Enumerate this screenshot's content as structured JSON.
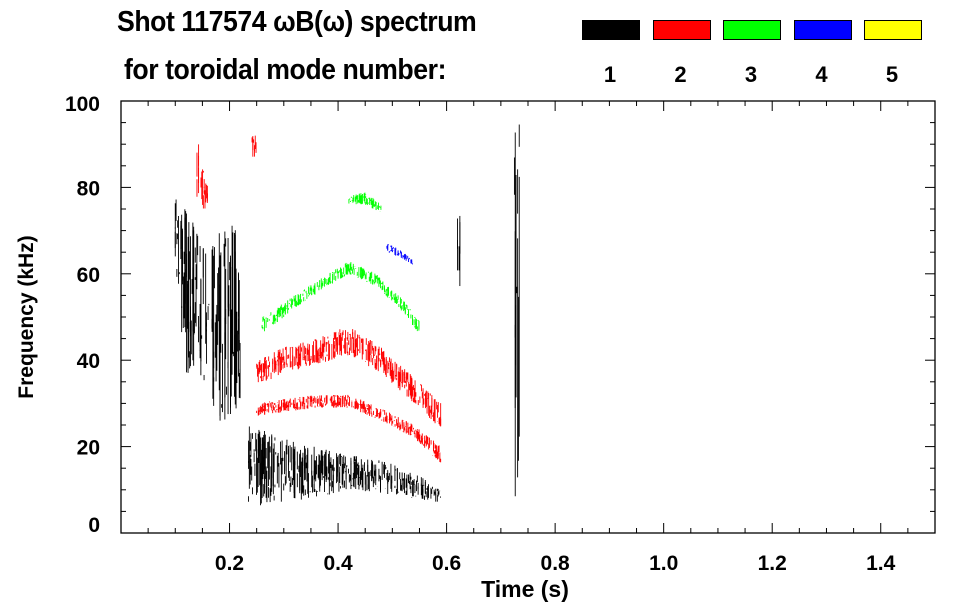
{
  "title_line1": "Shot 117574 ωB(ω) spectrum",
  "title_line2": "for toroidal mode number:",
  "legend": [
    {
      "mode": "1",
      "color": "#000000"
    },
    {
      "mode": "2",
      "color": "#ff0000"
    },
    {
      "mode": "3",
      "color": "#00ff00"
    },
    {
      "mode": "4",
      "color": "#0000ff"
    },
    {
      "mode": "5",
      "color": "#ffff00"
    }
  ],
  "chart_data": {
    "type": "heatmap",
    "title": "Shot 117574 ωB(ω) spectrum for toroidal mode number",
    "xlabel": "Time (s)",
    "ylabel": "Frequency (kHz)",
    "xlim": [
      0,
      1.5
    ],
    "ylim": [
      0,
      100
    ],
    "xticks": [
      "0.2",
      "0.4",
      "0.6",
      "0.8",
      "1.0",
      "1.2",
      "1.4"
    ],
    "xtick_values": [
      0.2,
      0.4,
      0.6,
      0.8,
      1.0,
      1.2,
      1.4
    ],
    "yticks": [
      "0",
      "20",
      "40",
      "60",
      "80",
      "100"
    ],
    "ytick_values": [
      0,
      20,
      40,
      60,
      80,
      100
    ],
    "bands": [
      {
        "name": "n1-early-burst",
        "mode": 1,
        "t": [
          0.1,
          0.12,
          0.14,
          0.16,
          0.18,
          0.2,
          0.22
        ],
        "fmin": [
          60,
          35,
          40,
          30,
          25,
          25,
          30
        ],
        "fmax": [
          78,
          75,
          70,
          65,
          70,
          72,
          70
        ]
      },
      {
        "name": "n1-low-burst",
        "mode": 1,
        "t": [
          0.235,
          0.3,
          0.36,
          0.42,
          0.48,
          0.54,
          0.59
        ],
        "fmin": [
          6,
          7,
          8,
          10,
          9,
          8,
          7
        ],
        "fmax": [
          25,
          22,
          20,
          18,
          17,
          14,
          10
        ]
      },
      {
        "name": "n2-upper",
        "mode": 2,
        "t": [
          0.25,
          0.3,
          0.36,
          0.42,
          0.48,
          0.54,
          0.59
        ],
        "fmin": [
          34,
          37,
          39,
          41,
          37,
          30,
          24
        ],
        "fmax": [
          40,
          43,
          45,
          48,
          43,
          36,
          30
        ]
      },
      {
        "name": "n2-lower",
        "mode": 2,
        "t": [
          0.25,
          0.3,
          0.36,
          0.42,
          0.48,
          0.54,
          0.59
        ],
        "fmin": [
          27,
          28,
          29,
          29,
          26,
          22,
          16
        ],
        "fmax": [
          30,
          31,
          32,
          32,
          29,
          25,
          20
        ]
      },
      {
        "name": "n2-high",
        "mode": 2,
        "t": [
          0.24,
          0.25
        ],
        "fmin": [
          87,
          87
        ],
        "fmax": [
          92,
          92
        ]
      },
      {
        "name": "n2-early",
        "mode": 2,
        "t": [
          0.14,
          0.16
        ],
        "fmin": [
          75,
          75
        ],
        "fmax": [
          92,
          80
        ]
      },
      {
        "name": "n3-main",
        "mode": 3,
        "t": [
          0.26,
          0.32,
          0.38,
          0.42,
          0.47,
          0.52,
          0.55
        ],
        "fmin": [
          46,
          52,
          57,
          60,
          57,
          51,
          46
        ],
        "fmax": [
          50,
          55,
          60,
          63,
          60,
          54,
          49
        ]
      },
      {
        "name": "n3-upper",
        "mode": 3,
        "t": [
          0.42,
          0.45,
          0.48
        ],
        "fmin": [
          76,
          76,
          74
        ],
        "fmax": [
          78,
          79,
          76
        ]
      },
      {
        "name": "n4",
        "mode": 4,
        "t": [
          0.49,
          0.51,
          0.54
        ],
        "fmin": [
          65,
          64,
          62
        ],
        "fmax": [
          67,
          66,
          63
        ]
      },
      {
        "name": "n1-spike-0.62",
        "mode": 1,
        "t": [
          0.62,
          0.625
        ],
        "fmin": [
          55,
          55
        ],
        "fmax": [
          75,
          75
        ]
      },
      {
        "name": "n1-spike-0.73",
        "mode": 1,
        "t": [
          0.725,
          0.735
        ],
        "fmin": [
          2,
          2
        ],
        "fmax": [
          100,
          100
        ]
      }
    ]
  }
}
